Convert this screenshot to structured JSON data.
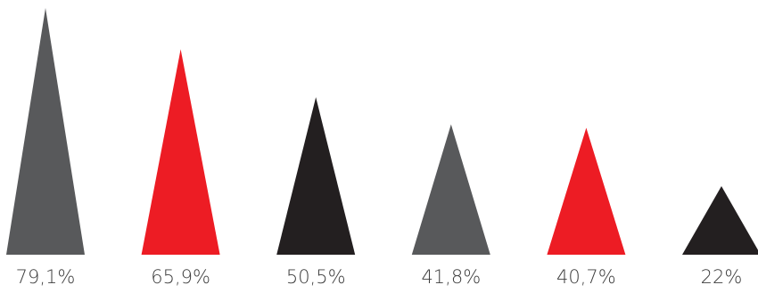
{
  "chart_data": {
    "type": "bar",
    "mark_shape": "triangle",
    "values": [
      79.1,
      65.9,
      50.5,
      41.8,
      40.7,
      22
    ],
    "value_labels": [
      "79,1%",
      "65,9%",
      "50,5%",
      "41,8%",
      "40,7%",
      "22%"
    ],
    "colors": [
      "#58595b",
      "#ed1c24",
      "#231f20",
      "#58595b",
      "#ed1c24",
      "#231f20"
    ],
    "ylim": [
      0,
      79.1
    ],
    "grid": false,
    "axes_visible": false
  }
}
